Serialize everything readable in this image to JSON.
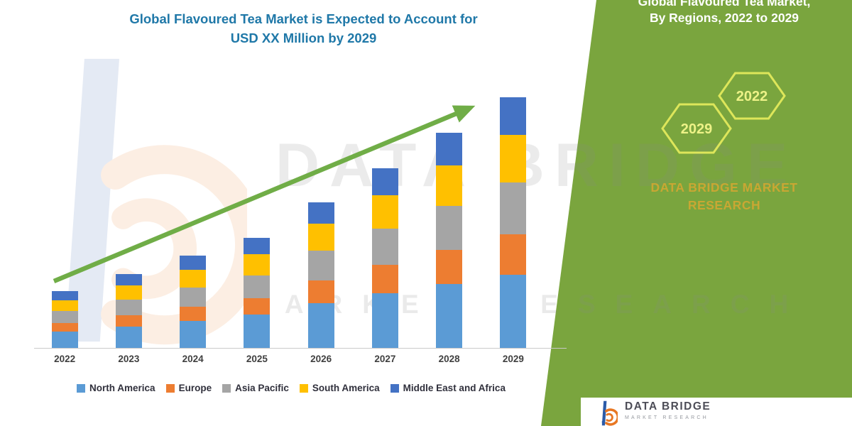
{
  "chart": {
    "title_line1": "Global Flavoured Tea Market is Expected to Account for",
    "title_line2": "USD XX Million by 2029",
    "title_color": "#1F78A8",
    "arrow_color": "#70AD47"
  },
  "chart_data": {
    "type": "bar",
    "stacked": true,
    "title": "Global Flavoured Tea Market is Expected to Account for USD XX Million by 2029",
    "categories": [
      "2022",
      "2023",
      "2024",
      "2025",
      "2026",
      "2027",
      "2028",
      "2029"
    ],
    "series": [
      {
        "name": "North America",
        "color": "#5B9BD5",
        "values": [
          7,
          9,
          11.5,
          14,
          19,
          23,
          27,
          31
        ]
      },
      {
        "name": "Europe",
        "color": "#ED7D31",
        "values": [
          3.5,
          4.8,
          6,
          7,
          9.5,
          12,
          14.5,
          17
        ]
      },
      {
        "name": "Asia Pacific",
        "color": "#A5A5A5",
        "values": [
          5,
          6.5,
          8,
          9.5,
          12.5,
          15.5,
          18.5,
          22
        ]
      },
      {
        "name": "South America",
        "color": "#FFC000",
        "values": [
          4.5,
          6,
          7.5,
          9,
          11.5,
          14,
          17,
          20
        ]
      },
      {
        "name": "Middle East and Africa",
        "color": "#4472C4",
        "values": [
          4,
          5,
          6,
          7,
          9,
          11.5,
          14,
          16
        ]
      }
    ],
    "xlabel": "",
    "ylabel": "",
    "ylim": [
      0,
      108
    ],
    "grid": false,
    "legend_position": "bottom",
    "trend_arrow": true
  },
  "panel": {
    "heading_line1": "Global Flavoured Tea Market,",
    "heading_line2": "By Regions, 2022 to 2029",
    "hexagons": [
      {
        "label": "2029"
      },
      {
        "label": "2022"
      }
    ],
    "brand_line1": "DATA BRIDGE MARKET",
    "brand_line2": "RESEARCH",
    "background_color": "#7AA53E",
    "hexagon_stroke": "#DDE65A",
    "hexagon_text_color": "#EDF287",
    "brand_text_color": "#C9A733"
  },
  "watermark": {
    "line1": "DATA BRIDGE",
    "line2": "MARKET RESEARCH"
  },
  "footer": {
    "brand_name": "DATA BRIDGE",
    "brand_sub": "MARKET RESEARCH"
  }
}
